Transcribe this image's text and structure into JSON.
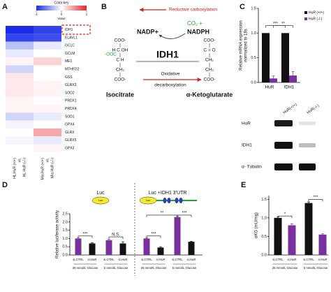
{
  "heatmap": {
    "label": "A",
    "color_key_title": "Color key",
    "color_key_axis": "Value",
    "color_key_lim": [
      -1,
      1
    ],
    "color_key_ticks": [
      -1,
      0,
      1
    ],
    "genes": [
      "IDH1",
      "ELAVL1",
      "GCLC",
      "GCLM",
      "ME1",
      "MTHFD2",
      "GSS",
      "GLRX3",
      "SOD2",
      "PRDX1",
      "PRDX4",
      "SOD1",
      "GPX4",
      "GLRX",
      "GLRX5",
      "GPX3"
    ],
    "columns": [
      [
        "HL.HuR (+/+)",
        "vs.",
        "HL.HuR (-/-)"
      ],
      [
        "Mia.HuR (+/+)",
        "vs.",
        "Mia.HuR (-/-)"
      ]
    ],
    "values": [
      [
        -1,
        -0.9
      ],
      [
        -0.9,
        -0.85
      ],
      [
        -0.3,
        -0.1
      ],
      [
        -0.1,
        0
      ],
      [
        0.05,
        0.2
      ],
      [
        -0.2,
        0
      ],
      [
        0.1,
        0
      ],
      [
        0.1,
        0.05
      ],
      [
        0.1,
        0.05
      ],
      [
        0.05,
        0
      ],
      [
        0.05,
        0.05
      ],
      [
        -0.2,
        -0.1
      ],
      [
        -0.05,
        0
      ],
      [
        0,
        0.4
      ],
      [
        -0.05,
        -0.1
      ],
      [
        0,
        0.05
      ]
    ]
  },
  "diagram": {
    "label": "B",
    "reductive": "Reductive carboxylation",
    "co2": "CO₂ +",
    "nadph": "NADPH",
    "nadp": "NADP+",
    "enzyme": "IDH1",
    "oxidative": [
      "Oxidative",
      "decarboxylation"
    ],
    "isocitrate": "Isocitrate",
    "akg": "α-Ketoglutarate",
    "isocitrate_structure": [
      "COO-",
      "H   C   OH",
      "C   H",
      "CH₂",
      "COO-"
    ],
    "isocitrate_branch": "-OOC",
    "akg_structure": [
      "COO-",
      "C = O",
      "CH₂",
      "CH₂",
      "COO-"
    ]
  },
  "chart_c": {
    "label": "C",
    "type": "bar",
    "ylabel": [
      "Relative mRNA expression",
      "normalized to 18s"
    ],
    "categories": [
      "HuR",
      "IDH1"
    ],
    "series": [
      {
        "name": "HuR (+/+)",
        "color": "#111111",
        "values": [
          1,
          1
        ],
        "errors": [
          0,
          0
        ]
      },
      {
        "name": "HuR (-/-)",
        "color": "#7b2f9e",
        "values": [
          0.08,
          0.14
        ],
        "errors": [
          0.05,
          0.08
        ]
      }
    ],
    "ylim": [
      0,
      1.5
    ],
    "yticks": [
      {
        "value": 0,
        "label": "0.0"
      },
      {
        "value": 0.5,
        "label": "0.5"
      },
      {
        "value": 1,
        "label": "1.0"
      },
      {
        "value": 1.5,
        "label": "1.5"
      }
    ],
    "annotations": [
      "***",
      "**"
    ]
  },
  "blot": {
    "lanes": [
      "HuR(+/+)",
      "HuR(-/-)"
    ],
    "rows": [
      "HuR",
      "IDH1",
      "α- Tubulin"
    ]
  },
  "chart_d": {
    "label": "D",
    "type": "bar",
    "ylabel": "Relative luciferase activity",
    "constructs": [
      "Luc",
      "Luc +IDH1 3'UTR"
    ],
    "icon_text": [
      "Luc",
      "Luc"
    ],
    "categories": [
      "si.CTRL",
      "si.HuR",
      "si.CTRL",
      "si.HuR",
      "si.CTRL",
      "si.HuR",
      "si.CTRL",
      "si.HuR"
    ],
    "values": [
      1.0,
      0.7,
      0.9,
      0.7,
      1.0,
      0.45,
      2.3,
      0.8
    ],
    "errors": [
      0.05,
      0.05,
      0.05,
      0.1,
      0.05,
      0.05,
      0.05,
      0.03
    ],
    "colors": [
      "#7b2f9e",
      "#111111",
      "#7b2f9e",
      "#111111",
      "#7b2f9e",
      "#111111",
      "#7b2f9e",
      "#111111"
    ],
    "groups": [
      "25 mmol/L Glucose",
      "5 mmol/L Glucose",
      "25 mmol/L Glucose",
      "5 mmol/L Glucose"
    ],
    "ylim": [
      0,
      2.5
    ],
    "yticks": [
      {
        "value": 0,
        "label": "0.0"
      },
      {
        "value": 0.5,
        "label": "0.5"
      },
      {
        "value": 1,
        "label": "1.0"
      },
      {
        "value": 1.5,
        "label": "1.5"
      },
      {
        "value": 2,
        "label": "2.0"
      },
      {
        "value": 2.5,
        "label": "2.5"
      }
    ],
    "annotations": [
      "***",
      "N.S.",
      "***",
      "**",
      "***"
    ]
  },
  "chart_e": {
    "label": "E",
    "type": "bar",
    "ylabel": "αKG (mU/mg)",
    "categories": [
      "si.CTRL",
      "si.HuR",
      "si.CTRL",
      "si.HuR"
    ],
    "values": [
      1.0,
      0.8,
      1.4,
      0.55
    ],
    "errors": [
      0.03,
      0.04,
      0.03,
      0.02
    ],
    "colors": [
      "#111111",
      "#7b2f9e",
      "#111111",
      "#7b2f9e"
    ],
    "groups": [
      "25 mmol/L Glucose",
      "5 mmol/L Glucose"
    ],
    "ylim": [
      0,
      1.6
    ],
    "yticks": [
      {
        "value": 0,
        "label": "0.0"
      },
      {
        "value": 0.5,
        "label": "0.5"
      },
      {
        "value": 1,
        "label": "1.0"
      },
      {
        "value": 1.5,
        "label": "1.5"
      }
    ],
    "annotations": [
      "*",
      "***"
    ]
  }
}
